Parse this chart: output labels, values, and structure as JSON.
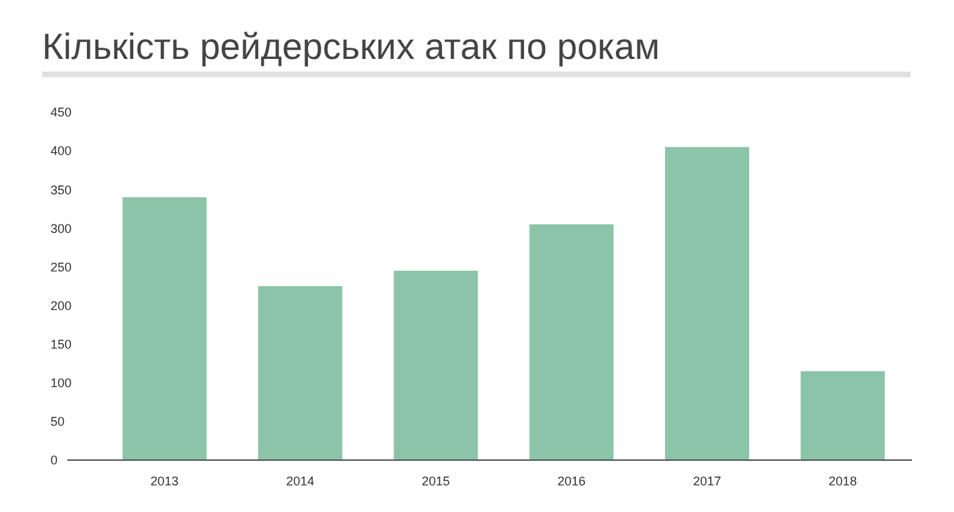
{
  "chart_data": {
    "type": "bar",
    "title": "Кількість рейдерських атак по рокам",
    "categories": [
      "2013",
      "2014",
      "2015",
      "2016",
      "2017",
      "2018"
    ],
    "values": [
      340,
      225,
      245,
      305,
      405,
      115
    ],
    "color": "#8bc4a8",
    "ylim": [
      0,
      450
    ],
    "yticks": [
      0,
      50,
      100,
      150,
      200,
      250,
      300,
      350,
      400,
      450
    ],
    "grid": false
  }
}
